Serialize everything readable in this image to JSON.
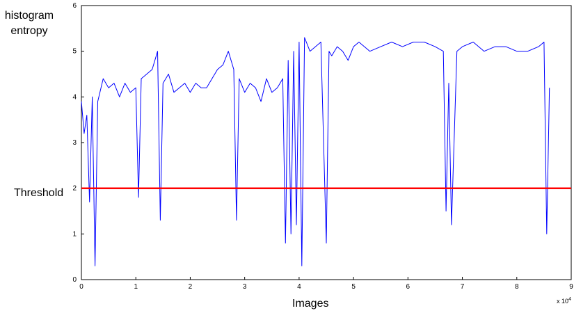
{
  "chart_data": {
    "type": "line",
    "title": "",
    "xlabel": "Images",
    "ylabel_line1": "histogram",
    "ylabel_line2": "entropy",
    "x_multiplier_base": "x 10",
    "x_multiplier_exp": "4",
    "xlim": [
      0,
      9
    ],
    "ylim": [
      0,
      6
    ],
    "xticks": [
      "0",
      "1",
      "2",
      "3",
      "4",
      "5",
      "6",
      "7",
      "8",
      "9"
    ],
    "yticks": [
      "0",
      "1",
      "2",
      "3",
      "4",
      "5",
      "6"
    ],
    "grid": false,
    "series": [
      {
        "color": "#0000ff",
        "x": [
          0,
          0.05,
          0.1,
          0.15,
          0.2,
          0.25,
          0.3,
          0.4,
          0.5,
          0.6,
          0.7,
          0.8,
          0.9,
          1.0,
          1.05,
          1.1,
          1.2,
          1.3,
          1.4,
          1.45,
          1.5,
          1.6,
          1.7,
          1.8,
          1.9,
          2.0,
          2.1,
          2.2,
          2.3,
          2.4,
          2.5,
          2.6,
          2.7,
          2.8,
          2.85,
          2.9,
          3.0,
          3.1,
          3.2,
          3.3,
          3.4,
          3.5,
          3.6,
          3.7,
          3.75,
          3.8,
          3.85,
          3.9,
          3.95,
          4.0,
          4.05,
          4.1,
          4.2,
          4.3,
          4.4,
          4.5,
          4.55,
          4.6,
          4.7,
          4.8,
          4.9,
          5.0,
          5.1,
          5.3,
          5.5,
          5.7,
          5.9,
          6.1,
          6.3,
          6.5,
          6.65,
          6.7,
          6.75,
          6.8,
          6.9,
          7.0,
          7.2,
          7.4,
          7.6,
          7.8,
          8.0,
          8.2,
          8.4,
          8.5,
          8.55,
          8.6
        ],
        "y": [
          3.9,
          3.2,
          3.6,
          1.7,
          4.0,
          0.3,
          3.9,
          4.4,
          4.2,
          4.3,
          4.0,
          4.3,
          4.1,
          4.2,
          1.8,
          4.4,
          4.5,
          4.6,
          5.0,
          1.3,
          4.3,
          4.5,
          4.1,
          4.2,
          4.3,
          4.1,
          4.3,
          4.2,
          4.2,
          4.4,
          4.6,
          4.7,
          5.0,
          4.6,
          1.3,
          4.4,
          4.1,
          4.3,
          4.2,
          3.9,
          4.4,
          4.1,
          4.2,
          4.4,
          0.8,
          4.8,
          1.0,
          5.0,
          1.2,
          5.2,
          0.3,
          5.3,
          5.0,
          5.1,
          5.2,
          0.8,
          5.0,
          4.9,
          5.1,
          5.0,
          4.8,
          5.1,
          5.2,
          5.0,
          5.1,
          5.2,
          5.1,
          5.2,
          5.2,
          5.1,
          5.0,
          1.5,
          4.3,
          1.2,
          5.0,
          5.1,
          5.2,
          5.0,
          5.1,
          5.1,
          5.0,
          5.0,
          5.1,
          5.2,
          1.0,
          4.2
        ]
      },
      {
        "color": "#ff0000",
        "label": "Threshold",
        "x": [
          0,
          9
        ],
        "y": [
          2,
          2
        ]
      }
    ]
  }
}
